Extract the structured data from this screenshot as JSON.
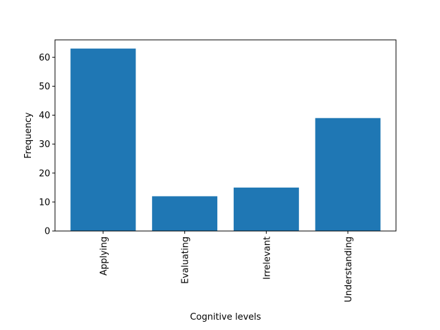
{
  "chart_data": {
    "type": "bar",
    "categories": [
      "Applying",
      "Evaluating",
      "Irrelevant",
      "Understanding"
    ],
    "values": [
      63,
      12,
      15,
      39
    ],
    "title": "",
    "xlabel": "Cognitive levels",
    "ylabel": "Frequency",
    "ylim": [
      0,
      66
    ],
    "yticks": [
      0,
      10,
      20,
      30,
      40,
      50,
      60
    ],
    "grid": false,
    "bar_color": "#1f77b4"
  }
}
